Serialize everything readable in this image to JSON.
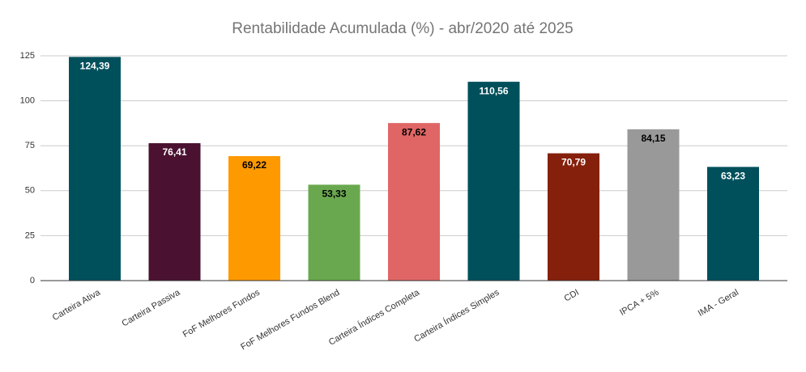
{
  "chart_data": {
    "type": "bar",
    "title": "Rentabilidade Acumulada (%) - abr/2020 até 2025",
    "categories": [
      "Carteira Ativa",
      "Carteira Passiva",
      "FoF Melhores Fundos",
      "FoF Melhores Fundos Blend",
      "Carteira Índices Completa",
      "Carteira Índices Simples",
      "CDI",
      "IPCA + 5%",
      "IMA - Geral"
    ],
    "values": [
      124.39,
      76.41,
      69.22,
      53.33,
      87.62,
      110.56,
      70.79,
      84.15,
      63.23
    ],
    "value_labels": [
      "124,39",
      "76,41",
      "69,22",
      "53,33",
      "87,62",
      "110,56",
      "70,79",
      "84,15",
      "63,23"
    ],
    "colors": [
      "#00505c",
      "#4a1130",
      "#ff9900",
      "#6aa84f",
      "#e06666",
      "#00505c",
      "#85200c",
      "#999999",
      "#00505c"
    ],
    "ylim": [
      0,
      125
    ],
    "yticks": [
      0,
      25,
      50,
      75,
      100,
      125
    ],
    "grid": true
  }
}
